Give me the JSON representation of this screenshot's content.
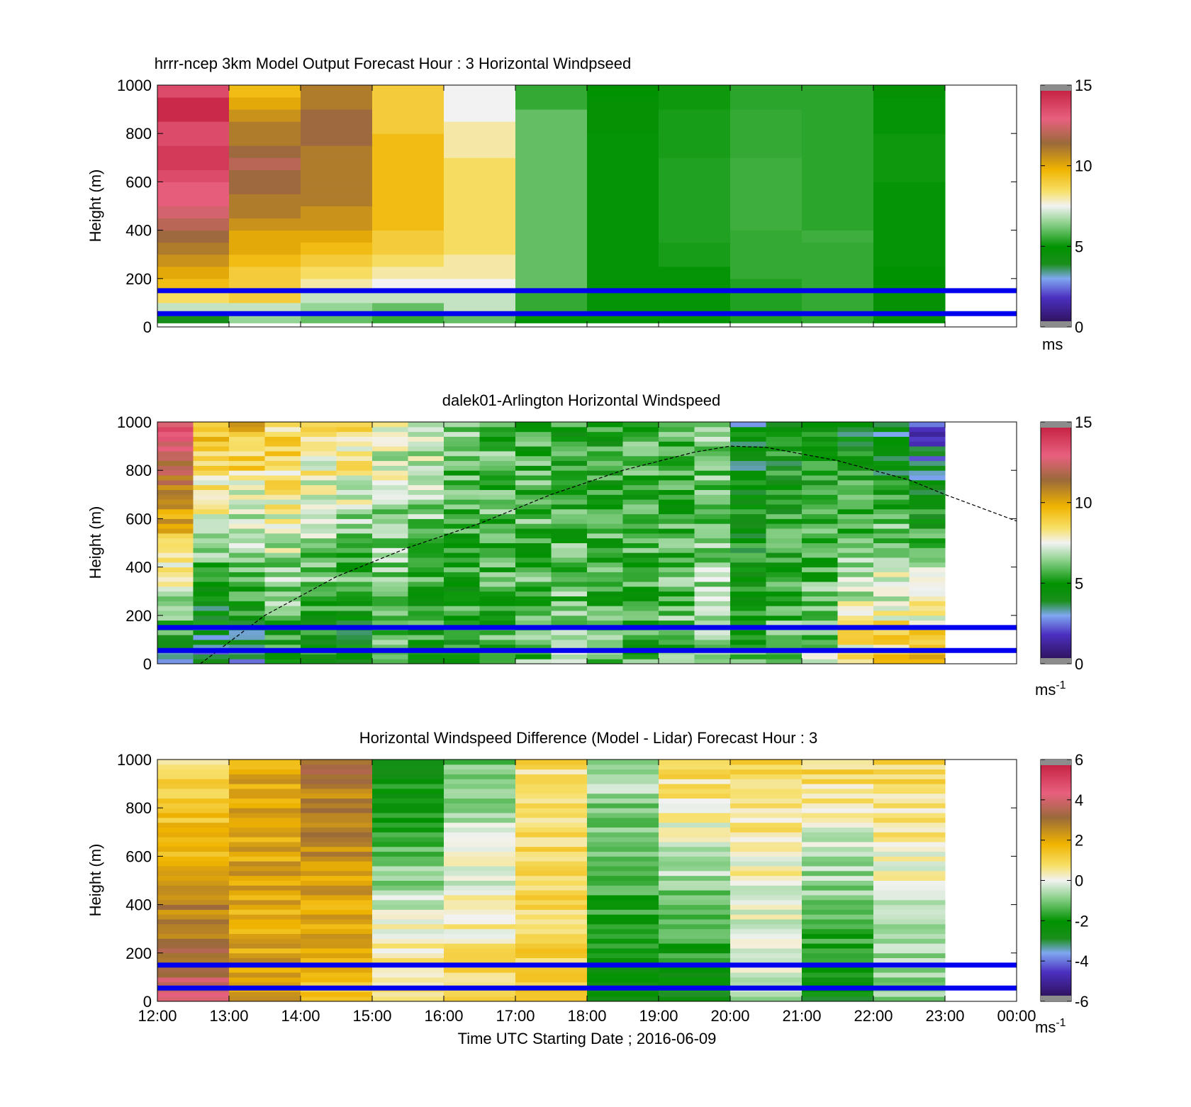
{
  "figure": {
    "xlabel": "Time UTC  Starting Date ; 2016-06-09",
    "x_ticks": [
      "12:00",
      "13:00",
      "14:00",
      "15:00",
      "16:00",
      "17:00",
      "18:00",
      "19:00",
      "20:00",
      "21:00",
      "22:00",
      "23:00",
      "00:00"
    ],
    "ylabel": "Height (m)",
    "y_ticks": [
      "0",
      "200",
      "400",
      "600",
      "800",
      "1000"
    ],
    "ylim": [
      0,
      1000
    ],
    "blue_lines_m": [
      55,
      150
    ],
    "colors": {
      "reference_line": "#0000ee",
      "boundary_layer_line": "#000000"
    }
  },
  "chart_data": [
    {
      "type": "heatmap",
      "title": "hrrr-ncep 3km Model Output   Forecast Hour : 3 Horizontal Windpseed",
      "ylabel": "Height (m)",
      "ylim": [
        0,
        1000
      ],
      "colorbar": {
        "range": [
          0,
          15
        ],
        "ticks": [
          "0",
          "5",
          "10",
          "15"
        ],
        "unit": "ms"
      },
      "x_hours": [
        12,
        13,
        14,
        15,
        16,
        17,
        18,
        19,
        20,
        21,
        22
      ],
      "heights_m": [
        25,
        75,
        125,
        175,
        225,
        275,
        325,
        375,
        425,
        475,
        525,
        575,
        625,
        675,
        725,
        775,
        825,
        875,
        925,
        975
      ],
      "values_by_hour": [
        [
          4,
          7,
          8.5,
          9.5,
          10,
          10.5,
          11,
          11.5,
          12,
          12.5,
          13,
          13,
          13.5,
          14,
          14,
          13.5,
          13.5,
          14.5,
          14.5,
          13.5
        ],
        [
          6.5,
          7,
          9,
          9,
          9,
          9.5,
          10,
          10,
          10.5,
          11,
          11,
          11.5,
          11.5,
          12,
          11.5,
          11,
          11,
          10.5,
          10,
          9.5
        ],
        [
          6,
          6.5,
          7,
          8,
          8.5,
          9,
          9.5,
          10,
          10.5,
          10.5,
          11,
          11,
          11,
          11,
          11,
          11.5,
          11.5,
          11.5,
          11,
          11
        ],
        [
          5.5,
          6,
          7,
          7.5,
          8,
          8.5,
          9,
          9,
          9.5,
          9.5,
          9.5,
          9.5,
          9.5,
          9.5,
          9.5,
          9.5,
          9,
          9,
          9,
          9
        ],
        [
          6,
          7,
          7,
          7.5,
          8,
          8,
          8.5,
          8.5,
          8.5,
          8.5,
          8.5,
          8.5,
          8.5,
          8.5,
          8,
          8,
          8,
          7.5,
          7.5,
          7.5
        ],
        [
          5,
          5.5,
          5.5,
          6,
          6,
          6,
          6,
          6,
          6,
          6,
          6,
          6,
          6,
          6,
          6,
          6,
          6,
          6,
          5.5,
          5.5
        ],
        [
          5,
          5,
          5,
          5,
          5,
          5,
          5,
          5,
          5,
          5,
          5,
          5,
          5,
          5,
          5,
          5,
          4.8,
          4.8,
          4.8,
          4.9
        ],
        [
          5,
          5,
          5,
          5,
          5,
          5.2,
          5.2,
          5.3,
          5.3,
          5.3,
          5.3,
          5.3,
          5.3,
          5.3,
          5.2,
          5.2,
          5.2,
          5.2,
          5.1,
          5.1
        ],
        [
          5.3,
          5.3,
          5.3,
          5.3,
          5.5,
          5.5,
          5.5,
          5.5,
          5.6,
          5.6,
          5.6,
          5.6,
          5.6,
          5.6,
          5.5,
          5.5,
          5.5,
          5.5,
          5.4,
          5.4
        ],
        [
          5.5,
          5.5,
          5.5,
          5.5,
          5.5,
          5.5,
          5.5,
          5.6,
          5.4,
          5.4,
          5.4,
          5.4,
          5.4,
          5.4,
          5.4,
          5.4,
          5.4,
          5.4,
          5.4,
          5.4
        ],
        [
          4.8,
          4.8,
          4.8,
          4.9,
          4.9,
          5,
          5,
          5,
          5,
          5,
          5,
          5,
          5.1,
          5.1,
          5.1,
          5.1,
          5,
          5,
          5,
          4.8
        ]
      ]
    },
    {
      "type": "heatmap",
      "title": "dalek01-Arlington  Horizontal Windspeed",
      "ylabel": "Height (m)",
      "ylim": [
        0,
        1000
      ],
      "colorbar": {
        "range": [
          0,
          15
        ],
        "ticks": [
          "0",
          "5",
          "10",
          "15"
        ],
        "unit": "ms-1"
      },
      "x_start_hour": 12,
      "x_step_hours": 0.5,
      "column_count": 22,
      "column_profiles": [
        {
          "bottom": 4,
          "top": 13.5
        },
        {
          "bottom": 3,
          "top": 10
        },
        {
          "bottom": 3.5,
          "top": 9.5
        },
        {
          "bottom": 5,
          "top": 9
        },
        {
          "bottom": 4.5,
          "top": 8.5
        },
        {
          "bottom": 4,
          "top": 8.5
        },
        {
          "bottom": 5.5,
          "top": 7.5
        },
        {
          "bottom": 5,
          "top": 7
        },
        {
          "bottom": 5,
          "top": 6
        },
        {
          "bottom": 5.5,
          "top": 6
        },
        {
          "bottom": 6,
          "top": 5.5
        },
        {
          "bottom": 6.5,
          "top": 5
        },
        {
          "bottom": 6,
          "top": 5
        },
        {
          "bottom": 5.5,
          "top": 5.5
        },
        {
          "bottom": 6,
          "top": 5.5
        },
        {
          "bottom": 6.5,
          "top": 6
        },
        {
          "bottom": 5.5,
          "top": 4
        },
        {
          "bottom": 6,
          "top": 4.5
        },
        {
          "bottom": 6.5,
          "top": 4.5
        },
        {
          "bottom": 8.5,
          "top": 4
        },
        {
          "bottom": 9,
          "top": 3.5
        },
        {
          "bottom": 9.5,
          "top": 2
        }
      ],
      "boundary_layer_curve": {
        "x_hours": [
          12.6,
          13.5,
          14.5,
          15.5,
          16.5,
          17.5,
          18.5,
          19.5,
          20,
          20.5,
          21.5,
          22.5,
          23,
          24
        ],
        "heights_m": [
          0,
          200,
          360,
          480,
          580,
          700,
          800,
          875,
          900,
          895,
          840,
          760,
          700,
          590
        ]
      }
    },
    {
      "type": "heatmap",
      "title": "Horizontal Windspeed Difference (Model - Lidar) Forecast Hour : 3",
      "xlabel": "Time UTC  Starting Date ; 2016-06-09",
      "ylabel": "Height (m)",
      "ylim": [
        0,
        1000
      ],
      "colorbar": {
        "range": [
          -6,
          6
        ],
        "ticks": [
          "-6",
          "-4",
          "-2",
          "0",
          "2",
          "4",
          "6"
        ],
        "unit": "ms-1"
      },
      "x_hours": [
        12,
        13,
        14,
        15,
        16,
        17,
        18,
        19,
        20,
        21,
        22
      ],
      "column_profiles": [
        {
          "bottom": 4,
          "top": 0.5
        },
        {
          "bottom": 2,
          "top": 2
        },
        {
          "bottom": 1.5,
          "top": 3
        },
        {
          "bottom": 1,
          "top": -2.5
        },
        {
          "bottom": 1,
          "top": -1
        },
        {
          "bottom": 1,
          "top": 0.8
        },
        {
          "bottom": -2.5,
          "top": -0.5
        },
        {
          "bottom": -2.5,
          "top": 1
        },
        {
          "bottom": -0.5,
          "top": 0.8
        },
        {
          "bottom": -2.5,
          "top": 1
        },
        {
          "bottom": -1,
          "top": 1
        }
      ]
    }
  ]
}
